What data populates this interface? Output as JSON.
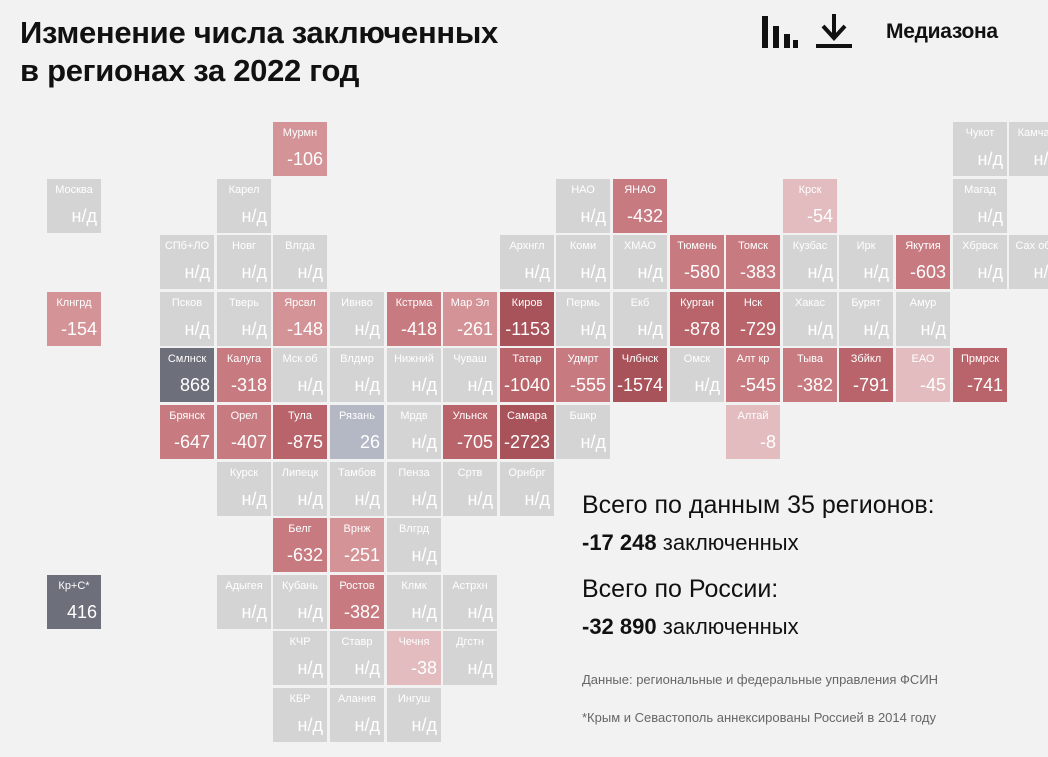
{
  "title_line1": "Изменение числа заключенных",
  "title_line2": "в регионах за 2022 год",
  "brand": "Медиазона",
  "toolbar": {
    "chart_icon": "bar-chart-icon",
    "download_icon": "download-icon"
  },
  "summary": {
    "regions_title": "Всего по данным 35 регионов:",
    "regions_number": "-17 248",
    "regions_unit": "заключенных",
    "russia_title": "Всего по России:",
    "russia_number": "-32 890",
    "russia_unit": "заключенных"
  },
  "source": "Данные: региональные и федеральные управления ФСИН",
  "footnote": "*Крым и Севастополь аннексированы Россией в 2014 году",
  "colors": {
    "nodata": "#d4d4d4",
    "positive_strong": "#6d6f7b",
    "positive_weak": "#b4b8c4",
    "negative_scale": [
      "#e2bcbe",
      "#d49396",
      "#c77b80",
      "#b8646a",
      "#a8525a"
    ]
  },
  "chart_data": {
    "type": "tile-map",
    "missing_label": "н/д",
    "regions": [
      {
        "name": "Мурмн",
        "value": -106,
        "col": 4,
        "row": 0
      },
      {
        "name": "Чукот",
        "value": null,
        "col": 16,
        "row": 0
      },
      {
        "name": "Камчат",
        "value": null,
        "col": 17,
        "row": 0
      },
      {
        "name": "Москва",
        "value": null,
        "col": 0,
        "row": 1
      },
      {
        "name": "Карел",
        "value": null,
        "col": 3,
        "row": 1
      },
      {
        "name": "НАО",
        "value": null,
        "col": 9,
        "row": 1
      },
      {
        "name": "ЯНАО",
        "value": -432,
        "col": 10,
        "row": 1
      },
      {
        "name": "Крск",
        "value": -54,
        "col": 13,
        "row": 1
      },
      {
        "name": "Магад",
        "value": null,
        "col": 16,
        "row": 1
      },
      {
        "name": "СПб+ЛО",
        "value": null,
        "col": 2,
        "row": 2
      },
      {
        "name": "Новг",
        "value": null,
        "col": 3,
        "row": 2
      },
      {
        "name": "Влгда",
        "value": null,
        "col": 4,
        "row": 2
      },
      {
        "name": "Архнгл",
        "value": null,
        "col": 8,
        "row": 2
      },
      {
        "name": "Коми",
        "value": null,
        "col": 9,
        "row": 2
      },
      {
        "name": "ХМАО",
        "value": null,
        "col": 10,
        "row": 2
      },
      {
        "name": "Тюмень",
        "value": -580,
        "col": 11,
        "row": 2
      },
      {
        "name": "Томск",
        "value": -383,
        "col": 12,
        "row": 2
      },
      {
        "name": "Кузбас",
        "value": null,
        "col": 13,
        "row": 2
      },
      {
        "name": "Ирк",
        "value": null,
        "col": 14,
        "row": 2
      },
      {
        "name": "Якутия",
        "value": -603,
        "col": 15,
        "row": 2
      },
      {
        "name": "Хбрвск",
        "value": null,
        "col": 16,
        "row": 2
      },
      {
        "name": "Сах обл",
        "value": null,
        "col": 17,
        "row": 2
      },
      {
        "name": "Клнгрд",
        "value": -154,
        "col": 0,
        "row": 3
      },
      {
        "name": "Псков",
        "value": null,
        "col": 2,
        "row": 3
      },
      {
        "name": "Тверь",
        "value": null,
        "col": 3,
        "row": 3
      },
      {
        "name": "Ярсвл",
        "value": -148,
        "col": 4,
        "row": 3
      },
      {
        "name": "Ивнво",
        "value": null,
        "col": 5,
        "row": 3
      },
      {
        "name": "Кстрма",
        "value": -418,
        "col": 6,
        "row": 3
      },
      {
        "name": "Мар Эл",
        "value": -261,
        "col": 7,
        "row": 3
      },
      {
        "name": "Киров",
        "value": -1153,
        "col": 8,
        "row": 3
      },
      {
        "name": "Пермь",
        "value": null,
        "col": 9,
        "row": 3
      },
      {
        "name": "Екб",
        "value": null,
        "col": 10,
        "row": 3
      },
      {
        "name": "Курган",
        "value": -878,
        "col": 11,
        "row": 3
      },
      {
        "name": "Нск",
        "value": -729,
        "col": 12,
        "row": 3
      },
      {
        "name": "Хакас",
        "value": null,
        "col": 13,
        "row": 3
      },
      {
        "name": "Бурят",
        "value": null,
        "col": 14,
        "row": 3
      },
      {
        "name": "Амур",
        "value": null,
        "col": 15,
        "row": 3
      },
      {
        "name": "Смлнск",
        "value": 868,
        "col": 2,
        "row": 4
      },
      {
        "name": "Калуга",
        "value": -318,
        "col": 3,
        "row": 4
      },
      {
        "name": "Мск об",
        "value": null,
        "col": 4,
        "row": 4
      },
      {
        "name": "Влдмр",
        "value": null,
        "col": 5,
        "row": 4
      },
      {
        "name": "Нижний",
        "value": null,
        "col": 6,
        "row": 4
      },
      {
        "name": "Чуваш",
        "value": null,
        "col": 7,
        "row": 4
      },
      {
        "name": "Татар",
        "value": -1040,
        "col": 8,
        "row": 4
      },
      {
        "name": "Удмрт",
        "value": -555,
        "col": 9,
        "row": 4
      },
      {
        "name": "Члбнск",
        "value": -1574,
        "col": 10,
        "row": 4
      },
      {
        "name": "Омск",
        "value": null,
        "col": 11,
        "row": 4
      },
      {
        "name": "Алт кр",
        "value": -545,
        "col": 12,
        "row": 4
      },
      {
        "name": "Тыва",
        "value": -382,
        "col": 13,
        "row": 4
      },
      {
        "name": "Збйкл",
        "value": -791,
        "col": 14,
        "row": 4
      },
      {
        "name": "ЕАО",
        "value": -45,
        "col": 15,
        "row": 4
      },
      {
        "name": "Прмрск",
        "value": -741,
        "col": 16,
        "row": 4
      },
      {
        "name": "Брянск",
        "value": -647,
        "col": 2,
        "row": 5
      },
      {
        "name": "Орел",
        "value": -407,
        "col": 3,
        "row": 5
      },
      {
        "name": "Тула",
        "value": -875,
        "col": 4,
        "row": 5
      },
      {
        "name": "Рязань",
        "value": 26,
        "col": 5,
        "row": 5
      },
      {
        "name": "Мрдв",
        "value": null,
        "col": 6,
        "row": 5
      },
      {
        "name": "Ульнск",
        "value": -705,
        "col": 7,
        "row": 5
      },
      {
        "name": "Самара",
        "value": -2723,
        "col": 8,
        "row": 5
      },
      {
        "name": "Бшкр",
        "value": null,
        "col": 9,
        "row": 5
      },
      {
        "name": "Алтай",
        "value": -8,
        "col": 12,
        "row": 5
      },
      {
        "name": "Курск",
        "value": null,
        "col": 3,
        "row": 6
      },
      {
        "name": "Липецк",
        "value": null,
        "col": 4,
        "row": 6
      },
      {
        "name": "Тамбов",
        "value": null,
        "col": 5,
        "row": 6
      },
      {
        "name": "Пенза",
        "value": null,
        "col": 6,
        "row": 6
      },
      {
        "name": "Сртв",
        "value": null,
        "col": 7,
        "row": 6
      },
      {
        "name": "Орнбрг",
        "value": null,
        "col": 8,
        "row": 6
      },
      {
        "name": "Белг",
        "value": -632,
        "col": 4,
        "row": 7
      },
      {
        "name": "Врнж",
        "value": -251,
        "col": 5,
        "row": 7
      },
      {
        "name": "Влгрд",
        "value": null,
        "col": 6,
        "row": 7
      },
      {
        "name": "Кр+С*",
        "value": 416,
        "col": 0,
        "row": 8
      },
      {
        "name": "Адыгея",
        "value": null,
        "col": 3,
        "row": 8
      },
      {
        "name": "Кубань",
        "value": null,
        "col": 4,
        "row": 8
      },
      {
        "name": "Ростов",
        "value": -382,
        "col": 5,
        "row": 8
      },
      {
        "name": "Клмк",
        "value": null,
        "col": 6,
        "row": 8
      },
      {
        "name": "Астрхн",
        "value": null,
        "col": 7,
        "row": 8
      },
      {
        "name": "КЧР",
        "value": null,
        "col": 4,
        "row": 9
      },
      {
        "name": "Ставр",
        "value": null,
        "col": 5,
        "row": 9
      },
      {
        "name": "Чечня",
        "value": -38,
        "col": 6,
        "row": 9
      },
      {
        "name": "Дгстн",
        "value": null,
        "col": 7,
        "row": 9
      },
      {
        "name": "КБР",
        "value": null,
        "col": 4,
        "row": 10
      },
      {
        "name": "Алания",
        "value": null,
        "col": 5,
        "row": 10
      },
      {
        "name": "Ингуш",
        "value": null,
        "col": 6,
        "row": 10
      }
    ]
  }
}
